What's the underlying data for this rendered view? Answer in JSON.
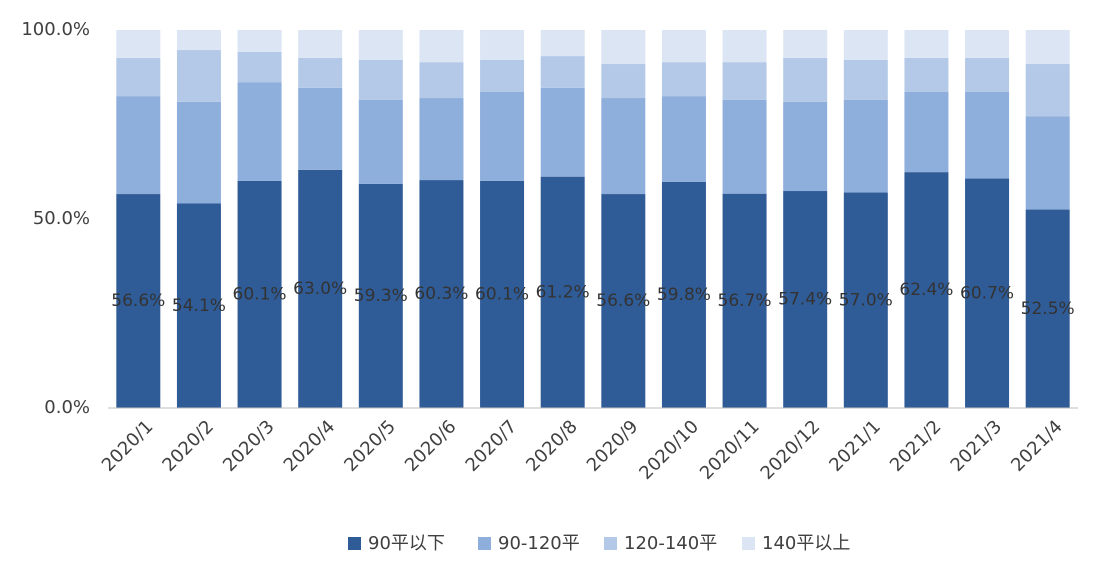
{
  "chart_data": {
    "type": "bar",
    "stacked": true,
    "categories": [
      "2020/1",
      "2020/2",
      "2020/3",
      "2020/4",
      "2020/5",
      "2020/6",
      "2020/7",
      "2020/8",
      "2020/9",
      "2020/10",
      "2020/11",
      "2020/12",
      "2021/1",
      "2021/2",
      "2021/3",
      "2021/4"
    ],
    "series": [
      {
        "name": "90平以下",
        "color": "#2f5b96",
        "values": [
          56.6,
          54.1,
          60.1,
          63.0,
          59.3,
          60.3,
          60.1,
          61.2,
          56.6,
          59.8,
          56.7,
          57.4,
          57.0,
          62.4,
          60.7,
          52.5
        ],
        "value_labels": [
          "56.6%",
          "54.1%",
          "60.1%",
          "63.0%",
          "59.3%",
          "60.3%",
          "60.1%",
          "61.2%",
          "56.6%",
          "59.8%",
          "56.7%",
          "57.4%",
          "57.0%",
          "62.4%",
          "60.7%",
          "52.5%"
        ]
      },
      {
        "name": "90-120平",
        "color": "#8eaedb",
        "values": [
          25.9,
          26.9,
          26.1,
          21.7,
          22.2,
          21.7,
          23.5,
          23.5,
          25.4,
          22.7,
          24.8,
          23.6,
          24.5,
          21.2,
          22.9,
          24.7
        ]
      },
      {
        "name": "120-140平",
        "color": "#b4c9e8",
        "values": [
          10.1,
          13.7,
          8.0,
          7.9,
          10.6,
          9.5,
          8.5,
          8.4,
          9.0,
          9.0,
          10.0,
          11.6,
          10.6,
          9.0,
          9.0,
          13.8
        ]
      },
      {
        "name": "140平以上",
        "color": "#dbe5f4",
        "values": [
          7.4,
          5.3,
          5.8,
          7.4,
          7.9,
          8.5,
          7.9,
          6.9,
          9.0,
          8.5,
          8.5,
          7.4,
          7.9,
          7.4,
          7.4,
          9.0
        ]
      }
    ],
    "ylim": [
      0,
      100
    ],
    "yticks": [
      {
        "value": 0,
        "label": "0.0%"
      },
      {
        "value": 50,
        "label": "50.0%"
      },
      {
        "value": 100,
        "label": "100.0%"
      }
    ],
    "legend": "bottom"
  }
}
